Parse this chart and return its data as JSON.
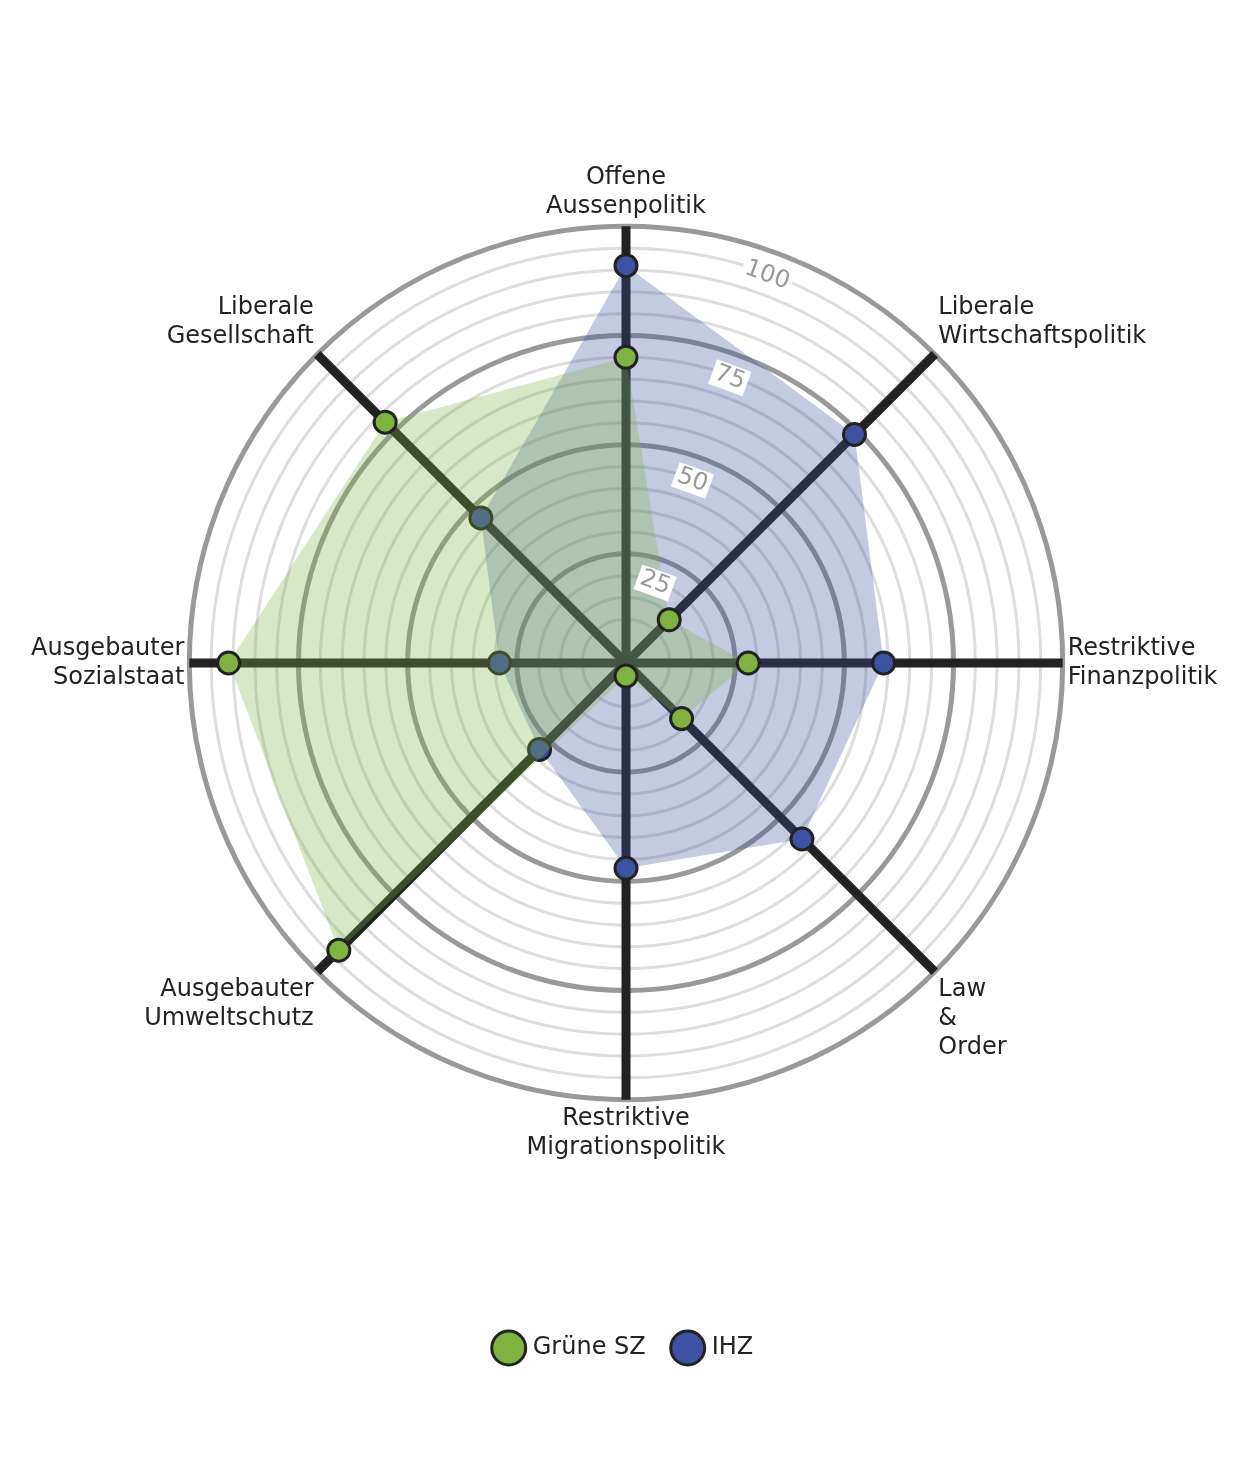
{
  "chart_data": {
    "type": "radar",
    "categories": [
      "Offene Aussenpolitik",
      "Liberale Wirtschaftspolitik",
      "Restriktive Finanzpolitik",
      "Law & Order",
      "Restriktive Migrationspolitik",
      "Ausgebauter Umweltschutz",
      "Ausgebauter Sozialstaat",
      "Liberale Gesellschaft"
    ],
    "series": [
      {
        "name": "Grüne SZ",
        "color": "#7fb241",
        "values": [
          70,
          14,
          28,
          18,
          3,
          93,
          91,
          78
        ]
      },
      {
        "name": "IHZ",
        "color": "#3f51a3",
        "values": [
          91,
          74,
          59,
          57,
          47,
          28,
          29,
          47
        ]
      }
    ],
    "ylim": [
      0,
      100
    ],
    "yticks": [
      25,
      50,
      75,
      100
    ],
    "grid": true,
    "legend": "bottom",
    "marker": "circle"
  }
}
